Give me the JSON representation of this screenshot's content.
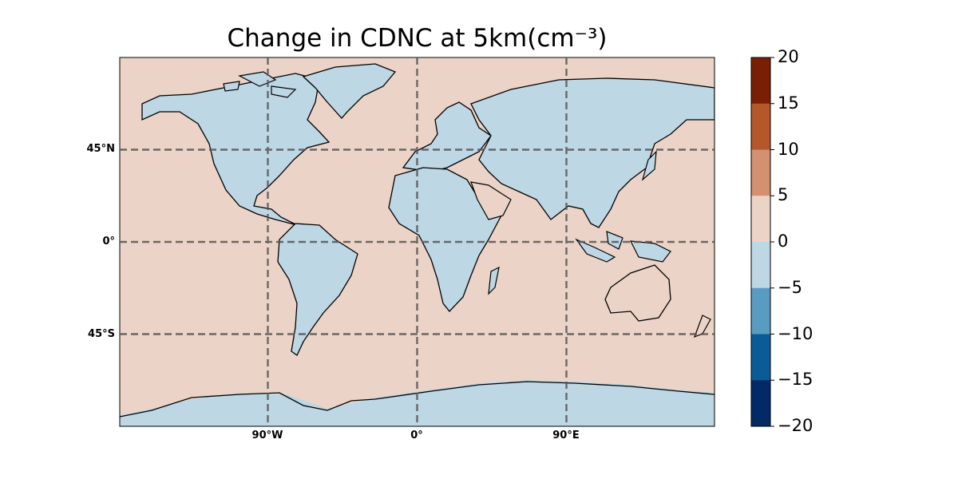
{
  "title": "Change in CDNC at 5km(cm⁻³)",
  "gridlines": {
    "lat_labels": [
      {
        "value": 45,
        "text": "45°N"
      },
      {
        "value": 0,
        "text": "0°"
      },
      {
        "value": -45,
        "text": "45°S"
      }
    ],
    "lon_labels": [
      {
        "value": -90,
        "text": "90°W"
      },
      {
        "value": 0,
        "text": "0°"
      },
      {
        "value": 90,
        "text": "90°E"
      }
    ]
  },
  "colorbar": {
    "ticks": [
      "20",
      "15",
      "10",
      "5",
      "0",
      "−5",
      "−10",
      "−15",
      "−20"
    ],
    "colors": [
      "#7a1f06",
      "#b4572a",
      "#d39172",
      "#ecd3c7",
      "#bdd7e4",
      "#5a9bc2",
      "#0b5c96",
      "#032a66"
    ]
  },
  "map": {
    "extent": {
      "lon": [
        -180,
        180
      ],
      "lat": [
        -90,
        90
      ]
    },
    "ocean_fill": "#ecd3c7",
    "land_fill": "#bdd7e4",
    "coast_color": "#000000"
  }
}
